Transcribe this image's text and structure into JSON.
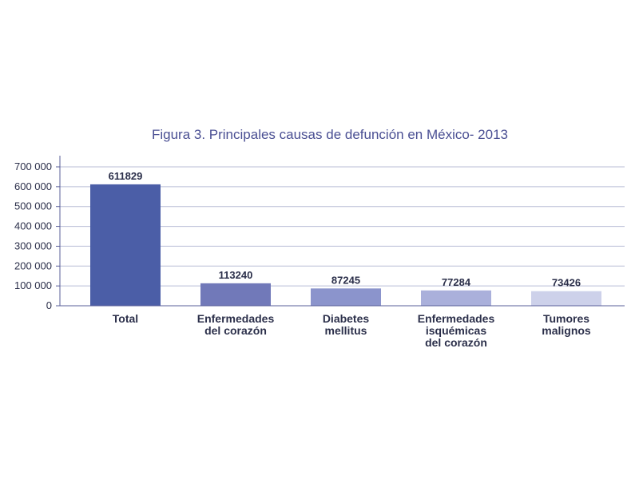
{
  "chart_data": {
    "type": "bar",
    "title": "Figura 3. Principales causas de defunción en México- 2013",
    "categories": [
      [
        "Total"
      ],
      [
        "Enfermedades",
        "del corazón"
      ],
      [
        "Diabetes",
        "mellitus"
      ],
      [
        "Enfermedades",
        "isquémicas",
        "del corazón"
      ],
      [
        "Tumores",
        "malignos"
      ]
    ],
    "values": [
      611829,
      113240,
      87245,
      77284,
      73426
    ],
    "value_labels": [
      "611829",
      "113240",
      "87245",
      "77284",
      "73426"
    ],
    "ylim": [
      0,
      700000
    ],
    "yticks": [
      0,
      100000,
      200000,
      300000,
      400000,
      500000,
      600000,
      700000
    ],
    "ytick_labels": [
      "0",
      "100 000",
      "200 000",
      "300 000",
      "400 000",
      "500 000",
      "600 000",
      "700 000"
    ],
    "grid": true,
    "colors": [
      "#4b5ea7",
      "#7179b9",
      "#8b94cc",
      "#aab0db",
      "#cdd1ea"
    ],
    "first_label_color": "#4b5ea7",
    "xlabel": "",
    "ylabel": ""
  }
}
